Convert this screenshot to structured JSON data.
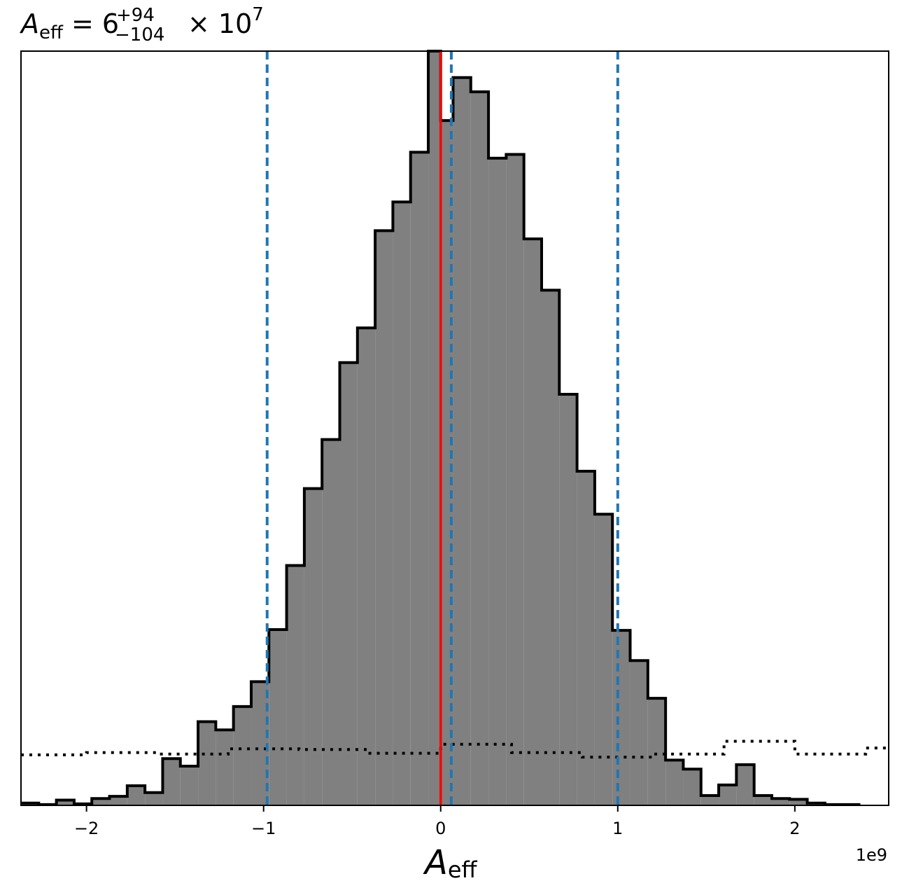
{
  "chart_data": {
    "type": "histogram",
    "title": {
      "symbol": "A",
      "symbol_sub": "eff",
      "equals": " = ",
      "median": "6",
      "plus": "+94",
      "minus": "−104",
      "times": " × 10",
      "exponent": "7"
    },
    "xlabel": {
      "symbol": "A",
      "sub": "eff"
    },
    "x_offset_text": "1e9",
    "xlim": [
      -2370000000.0,
      2530000000.0
    ],
    "ylim": [
      0,
      1
    ],
    "xticks": [
      {
        "value": -2000000000.0,
        "label": "−2"
      },
      {
        "value": -1000000000.0,
        "label": "−1"
      },
      {
        "value": 0,
        "label": "0"
      },
      {
        "value": 1000000000.0,
        "label": "1"
      },
      {
        "value": 2000000000.0,
        "label": "2"
      }
    ],
    "posterior_hist": {
      "bin_edges_1e9": [
        -2.37,
        -2.27,
        -2.17,
        -2.07,
        -1.97,
        -1.87,
        -1.77,
        -1.67,
        -1.57,
        -1.47,
        -1.37,
        -1.27,
        -1.17,
        -1.07,
        -0.97,
        -0.87,
        -0.77,
        -0.67,
        -0.57,
        -0.47,
        -0.37,
        -0.27,
        -0.17,
        -0.07,
        0.0,
        0.07,
        0.17,
        0.27,
        0.37,
        0.47,
        0.57,
        0.67,
        0.77,
        0.87,
        0.97,
        1.07,
        1.17,
        1.27,
        1.37,
        1.47,
        1.57,
        1.67,
        1.77,
        1.87,
        1.97,
        2.07,
        2.17,
        2.27,
        2.37
      ],
      "heights": [
        0.003,
        0.001,
        0.007,
        0.002,
        0.009,
        0.012,
        0.026,
        0.017,
        0.062,
        0.052,
        0.111,
        0.1,
        0.131,
        0.164,
        0.233,
        0.318,
        0.42,
        0.485,
        0.587,
        0.633,
        0.762,
        0.8,
        0.866,
        1.0,
        0.908,
        0.965,
        0.946,
        0.858,
        0.863,
        0.751,
        0.683,
        0.545,
        0.443,
        0.386,
        0.232,
        0.192,
        0.142,
        0.06,
        0.048,
        0.013,
        0.027,
        0.054,
        0.013,
        0.009,
        0.008,
        0.003,
        0.001,
        0.001
      ],
      "fill": "#808080",
      "edge": "#000000"
    },
    "prior_hist": {
      "bin_edges_1e9": [
        -2.37,
        -2.0,
        -1.6,
        -1.2,
        -0.8,
        -0.4,
        0.0,
        0.4,
        0.8,
        1.2,
        1.6,
        2.0,
        2.4,
        2.53
      ],
      "heights": [
        0.067,
        0.07,
        0.068,
        0.075,
        0.074,
        0.069,
        0.081,
        0.07,
        0.064,
        0.068,
        0.085,
        0.068,
        0.076
      ],
      "style": "dotted",
      "color": "#000000"
    },
    "quantile_lines_1e9": [
      -0.98,
      0.06,
      1.0
    ],
    "quantile_color": "#1f77b4",
    "truth_line_1e9": 0.0,
    "truth_color": "#ff0000",
    "grid": false
  }
}
